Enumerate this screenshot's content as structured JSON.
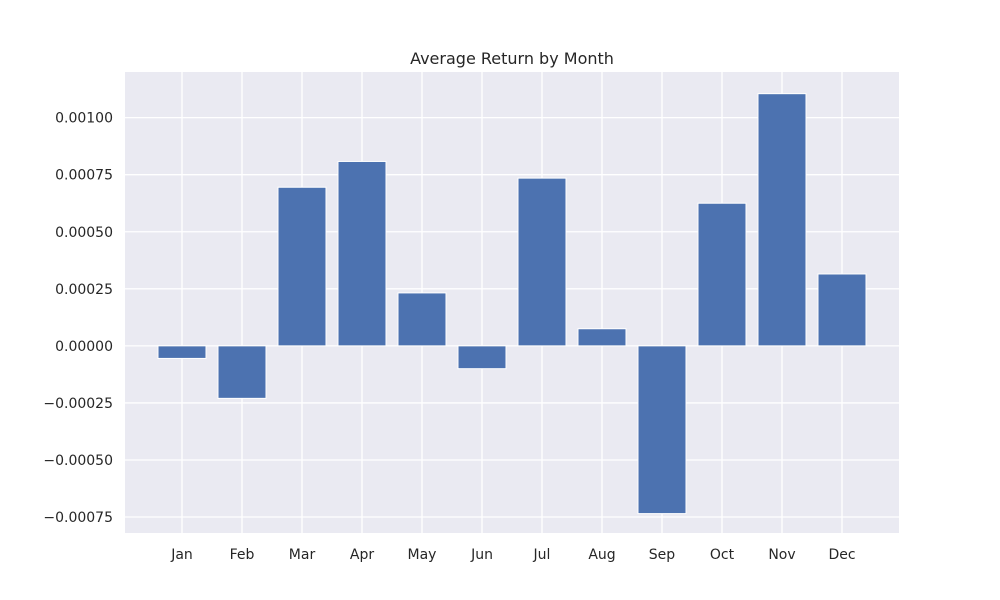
{
  "chart_data": {
    "type": "bar",
    "title": "Average Return by Month",
    "xlabel": "",
    "ylabel": "",
    "categories": [
      "Jan",
      "Feb",
      "Mar",
      "Apr",
      "May",
      "Jun",
      "Jul",
      "Aug",
      "Sep",
      "Oct",
      "Nov",
      "Dec"
    ],
    "values": [
      -5.5e-05,
      -0.00023,
      0.000695,
      0.000808,
      0.000232,
      -0.0001,
      0.000735,
      7.5e-05,
      -0.000735,
      0.000625,
      0.001105,
      0.000315
    ],
    "ylim": [
      -0.00082,
      0.0012
    ],
    "yticks": [
      -0.00075,
      -0.0005,
      -0.00025,
      0.0,
      0.00025,
      0.0005,
      0.00075,
      0.001
    ],
    "ytick_labels": [
      "−0.00075",
      "−0.00050",
      "−0.00025",
      "0.00000",
      "0.00025",
      "0.00050",
      "0.00075",
      "0.00100"
    ],
    "grid": true,
    "colors": {
      "bar": "#4c72b0",
      "background": "#eaeaf2",
      "grid": "#ffffff",
      "text": "#262626"
    }
  }
}
